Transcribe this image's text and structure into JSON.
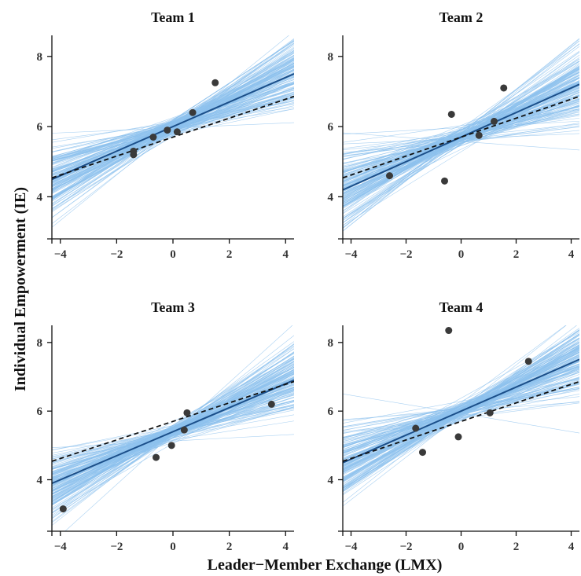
{
  "figure": {
    "ylabel": "Individual Empowerment (IE)",
    "xlabel": "Leader−Member Exchange (LMX)"
  },
  "colors": {
    "posterior_lines": "#8ec2ee",
    "mean_line": "#1b4f8a",
    "fixed_line": "#111111",
    "points": "#3a3a3a"
  },
  "chart_data": [
    {
      "type": "scatter",
      "title": "Team 1",
      "xlim": [
        -4.3,
        4.3
      ],
      "ylim": [
        2.8,
        8.6
      ],
      "xticks": [
        -4,
        -2,
        0,
        2,
        4
      ],
      "yticks": [
        4,
        6,
        8
      ],
      "points": [
        [
          -1.4,
          5.3
        ],
        [
          -1.4,
          5.2
        ],
        [
          -0.7,
          5.7
        ],
        [
          -0.2,
          5.9
        ],
        [
          0.15,
          5.85
        ],
        [
          0.7,
          6.4
        ],
        [
          1.5,
          7.25
        ]
      ],
      "team_line": {
        "intercept": 6.0,
        "slope": 0.35
      },
      "fixed_line": {
        "intercept": 5.7,
        "slope": 0.27
      },
      "posterior_spread": {
        "intercept_sd": 0.12,
        "slope_sd": 0.12
      }
    },
    {
      "type": "scatter",
      "title": "Team 2",
      "xlim": [
        -4.3,
        4.3
      ],
      "ylim": [
        2.8,
        8.6
      ],
      "xticks": [
        -4,
        -2,
        0,
        2,
        4
      ],
      "yticks": [
        4,
        6,
        8
      ],
      "points": [
        [
          -2.6,
          4.6
        ],
        [
          -0.6,
          4.45
        ],
        [
          -0.35,
          6.35
        ],
        [
          0.65,
          5.75
        ],
        [
          1.2,
          6.15
        ],
        [
          1.55,
          7.1
        ]
      ],
      "team_line": {
        "intercept": 5.7,
        "slope": 0.35
      },
      "fixed_line": {
        "intercept": 5.7,
        "slope": 0.27
      },
      "posterior_spread": {
        "intercept_sd": 0.12,
        "slope_sd": 0.12
      }
    },
    {
      "type": "scatter",
      "title": "Team 3",
      "xlim": [
        -4.3,
        4.3
      ],
      "ylim": [
        2.5,
        8.5
      ],
      "xticks": [
        -4,
        -2,
        0,
        2,
        4
      ],
      "yticks": [
        4,
        6,
        8
      ],
      "points": [
        [
          -3.9,
          3.15
        ],
        [
          -0.6,
          4.65
        ],
        [
          -0.05,
          5.0
        ],
        [
          0.4,
          5.45
        ],
        [
          0.5,
          5.95
        ],
        [
          3.5,
          6.2
        ]
      ],
      "team_line": {
        "intercept": 5.4,
        "slope": 0.35
      },
      "fixed_line": {
        "intercept": 5.7,
        "slope": 0.27
      },
      "posterior_spread": {
        "intercept_sd": 0.12,
        "slope_sd": 0.12
      }
    },
    {
      "type": "scatter",
      "title": "Team 4",
      "xlim": [
        -4.3,
        4.3
      ],
      "ylim": [
        2.5,
        8.5
      ],
      "xticks": [
        -4,
        -2,
        0,
        2,
        4
      ],
      "yticks": [
        4,
        6,
        8
      ],
      "points": [
        [
          -1.65,
          5.5
        ],
        [
          -1.4,
          4.8
        ],
        [
          -0.45,
          8.35
        ],
        [
          -0.1,
          5.25
        ],
        [
          1.05,
          5.95
        ],
        [
          2.45,
          7.45
        ]
      ],
      "team_line": {
        "intercept": 6.0,
        "slope": 0.35
      },
      "fixed_line": {
        "intercept": 5.7,
        "slope": 0.27
      },
      "posterior_spread": {
        "intercept_sd": 0.12,
        "slope_sd": 0.12
      }
    }
  ]
}
